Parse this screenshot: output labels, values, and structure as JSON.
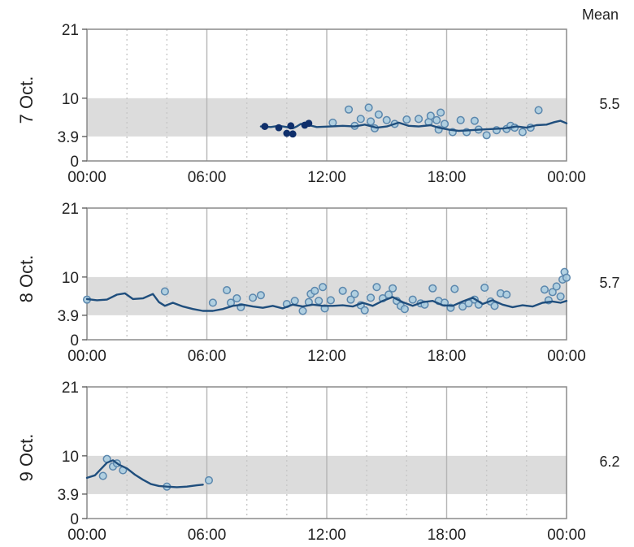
{
  "mean_header": "Mean",
  "colors": {
    "target_band": "#dcdcdc",
    "line": "#1f4e7d",
    "point_fill": "#a8cde0",
    "point_stroke": "#5b87ad",
    "solid_point": "#0f2f6b",
    "grid_major": "#b5b5b5",
    "grid_minor": "#c8c8c8",
    "frame": "#8a8a8a"
  },
  "chart_data": [
    {
      "type": "line",
      "day_label": "7 Oct.",
      "mean": "5.5",
      "x_ticks": [
        "00:00",
        "06:00",
        "12:00",
        "18:00",
        "00:00"
      ],
      "y_ticks": [
        "0",
        "3.9",
        "10",
        "21"
      ],
      "xlim": [
        0,
        24
      ],
      "ylim": [
        0,
        21
      ],
      "target_range": [
        3.9,
        10
      ],
      "grid": true,
      "line": [
        [
          8.7,
          5.5
        ],
        [
          9.2,
          5.4
        ],
        [
          9.6,
          5.6
        ],
        [
          10.0,
          5.4
        ],
        [
          10.3,
          5.2
        ],
        [
          10.5,
          5.5
        ],
        [
          10.7,
          5.9
        ],
        [
          11.0,
          5.8
        ],
        [
          11.5,
          5.4
        ],
        [
          12.2,
          5.5
        ],
        [
          12.8,
          5.6
        ],
        [
          13.4,
          5.5
        ],
        [
          13.9,
          5.8
        ],
        [
          14.5,
          5.3
        ],
        [
          15.0,
          5.5
        ],
        [
          15.6,
          6.1
        ],
        [
          16.1,
          5.6
        ],
        [
          16.6,
          5.5
        ],
        [
          17.2,
          5.7
        ],
        [
          17.6,
          5.3
        ],
        [
          18.1,
          5.0
        ],
        [
          18.6,
          4.8
        ],
        [
          19.2,
          4.9
        ],
        [
          19.7,
          5.0
        ],
        [
          20.3,
          5.1
        ],
        [
          20.9,
          5.2
        ],
        [
          21.5,
          5.5
        ],
        [
          22.0,
          5.3
        ],
        [
          22.5,
          5.7
        ],
        [
          23.0,
          5.8
        ],
        [
          23.4,
          6.2
        ],
        [
          23.7,
          6.4
        ],
        [
          24.0,
          6.0
        ]
      ],
      "points": [
        [
          13.1,
          8.2
        ],
        [
          14.1,
          8.5
        ],
        [
          14.6,
          7.4
        ],
        [
          13.7,
          6.7
        ],
        [
          12.3,
          6.1
        ],
        [
          13.4,
          5.6
        ],
        [
          14.2,
          6.3
        ],
        [
          15.0,
          6.5
        ],
        [
          15.4,
          5.9
        ],
        [
          16.0,
          6.6
        ],
        [
          16.6,
          6.7
        ],
        [
          17.1,
          6.2
        ],
        [
          17.2,
          7.2
        ],
        [
          17.5,
          6.5
        ],
        [
          17.7,
          7.7
        ],
        [
          17.9,
          5.9
        ],
        [
          17.6,
          5.0
        ],
        [
          18.3,
          4.6
        ],
        [
          18.7,
          6.5
        ],
        [
          19.0,
          4.6
        ],
        [
          19.4,
          6.4
        ],
        [
          19.6,
          5.0
        ],
        [
          20.0,
          4.1
        ],
        [
          20.5,
          4.9
        ],
        [
          21.0,
          5.1
        ],
        [
          21.2,
          5.6
        ],
        [
          21.4,
          5.3
        ],
        [
          21.8,
          4.6
        ],
        [
          22.2,
          5.3
        ],
        [
          22.6,
          8.1
        ],
        [
          14.4,
          5.2
        ]
      ],
      "solid_points": [
        [
          8.9,
          5.5
        ],
        [
          9.6,
          5.3
        ],
        [
          10.0,
          4.4
        ],
        [
          10.3,
          4.3
        ],
        [
          10.9,
          5.7
        ],
        [
          11.1,
          6.0
        ],
        [
          10.2,
          5.6
        ]
      ]
    },
    {
      "type": "line",
      "day_label": "8 Oct.",
      "mean": "5.7",
      "x_ticks": [
        "00:00",
        "06:00",
        "12:00",
        "18:00",
        "00:00"
      ],
      "y_ticks": [
        "0",
        "3.9",
        "10",
        "21"
      ],
      "xlim": [
        0,
        24
      ],
      "ylim": [
        0,
        21
      ],
      "target_range": [
        3.9,
        10
      ],
      "grid": true,
      "line": [
        [
          0.0,
          6.5
        ],
        [
          0.5,
          6.3
        ],
        [
          1.0,
          6.4
        ],
        [
          1.5,
          7.2
        ],
        [
          1.9,
          7.4
        ],
        [
          2.3,
          6.5
        ],
        [
          2.8,
          6.6
        ],
        [
          3.3,
          7.3
        ],
        [
          3.6,
          6.0
        ],
        [
          3.9,
          5.4
        ],
        [
          4.3,
          5.9
        ],
        [
          4.8,
          5.3
        ],
        [
          5.3,
          4.9
        ],
        [
          5.8,
          4.6
        ],
        [
          6.3,
          4.6
        ],
        [
          6.8,
          4.9
        ],
        [
          7.3,
          5.4
        ],
        [
          7.8,
          5.6
        ],
        [
          8.3,
          5.3
        ],
        [
          8.8,
          5.1
        ],
        [
          9.3,
          5.4
        ],
        [
          9.8,
          5.0
        ],
        [
          10.3,
          5.6
        ],
        [
          10.8,
          5.3
        ],
        [
          11.3,
          5.6
        ],
        [
          11.8,
          5.4
        ],
        [
          12.3,
          5.4
        ],
        [
          12.8,
          5.5
        ],
        [
          13.3,
          5.3
        ],
        [
          13.8,
          5.9
        ],
        [
          14.3,
          5.4
        ],
        [
          14.8,
          6.2
        ],
        [
          15.3,
          6.8
        ],
        [
          15.8,
          6.0
        ],
        [
          16.3,
          5.4
        ],
        [
          16.8,
          6.0
        ],
        [
          17.3,
          6.2
        ],
        [
          17.8,
          5.5
        ],
        [
          18.3,
          5.4
        ],
        [
          18.8,
          6.1
        ],
        [
          19.3,
          6.7
        ],
        [
          19.8,
          5.7
        ],
        [
          20.3,
          6.3
        ],
        [
          20.8,
          5.6
        ],
        [
          21.3,
          5.2
        ],
        [
          21.8,
          5.5
        ],
        [
          22.3,
          5.3
        ],
        [
          22.8,
          5.9
        ],
        [
          23.3,
          6.1
        ],
        [
          23.7,
          5.9
        ],
        [
          24.0,
          6.2
        ]
      ],
      "points": [
        [
          0.0,
          6.4
        ],
        [
          3.9,
          7.7
        ],
        [
          6.3,
          5.9
        ],
        [
          7.0,
          7.9
        ],
        [
          7.5,
          6.6
        ],
        [
          7.2,
          5.9
        ],
        [
          7.7,
          5.2
        ],
        [
          8.3,
          6.7
        ],
        [
          8.7,
          7.1
        ],
        [
          10.0,
          5.7
        ],
        [
          10.4,
          6.2
        ],
        [
          10.8,
          4.6
        ],
        [
          11.1,
          6.0
        ],
        [
          11.2,
          7.3
        ],
        [
          11.4,
          7.8
        ],
        [
          11.6,
          6.2
        ],
        [
          11.8,
          8.4
        ],
        [
          11.9,
          5.0
        ],
        [
          12.2,
          6.3
        ],
        [
          12.8,
          7.8
        ],
        [
          13.2,
          6.4
        ],
        [
          13.4,
          7.3
        ],
        [
          13.7,
          5.5
        ],
        [
          13.9,
          4.7
        ],
        [
          14.2,
          6.7
        ],
        [
          14.5,
          8.4
        ],
        [
          14.8,
          6.6
        ],
        [
          15.1,
          7.2
        ],
        [
          15.3,
          8.2
        ],
        [
          15.5,
          6.2
        ],
        [
          15.7,
          5.4
        ],
        [
          15.9,
          4.9
        ],
        [
          16.3,
          6.4
        ],
        [
          16.7,
          5.8
        ],
        [
          16.9,
          5.6
        ],
        [
          17.3,
          8.2
        ],
        [
          17.6,
          6.2
        ],
        [
          17.9,
          5.9
        ],
        [
          18.2,
          5.1
        ],
        [
          18.4,
          8.1
        ],
        [
          18.8,
          5.3
        ],
        [
          19.1,
          5.8
        ],
        [
          19.4,
          6.4
        ],
        [
          19.6,
          5.6
        ],
        [
          19.9,
          8.3
        ],
        [
          20.2,
          6.1
        ],
        [
          20.4,
          5.4
        ],
        [
          20.7,
          7.4
        ],
        [
          21.0,
          7.2
        ],
        [
          22.9,
          8.0
        ],
        [
          23.3,
          7.6
        ],
        [
          23.5,
          8.5
        ],
        [
          23.8,
          9.6
        ],
        [
          23.9,
          10.8
        ],
        [
          24.0,
          9.9
        ],
        [
          23.7,
          6.9
        ],
        [
          23.1,
          6.3
        ]
      ],
      "solid_points": []
    },
    {
      "type": "line",
      "day_label": "9 Oct.",
      "mean": "6.2",
      "x_ticks": [
        "00:00",
        "06:00",
        "12:00",
        "18:00",
        "00:00"
      ],
      "y_ticks": [
        "0",
        "3.9",
        "10",
        "21"
      ],
      "xlim": [
        0,
        24
      ],
      "ylim": [
        0,
        21
      ],
      "target_range": [
        3.9,
        10
      ],
      "grid": true,
      "line": [
        [
          0.0,
          6.5
        ],
        [
          0.4,
          6.9
        ],
        [
          0.7,
          7.9
        ],
        [
          1.0,
          8.9
        ],
        [
          1.3,
          9.3
        ],
        [
          1.6,
          8.6
        ],
        [
          2.0,
          8.0
        ],
        [
          2.4,
          7.0
        ],
        [
          2.8,
          6.2
        ],
        [
          3.2,
          5.5
        ],
        [
          3.6,
          5.2
        ],
        [
          4.0,
          5.1
        ],
        [
          4.5,
          5.0
        ],
        [
          5.0,
          5.1
        ],
        [
          5.5,
          5.3
        ],
        [
          5.8,
          5.4
        ]
      ],
      "points": [
        [
          0.8,
          6.8
        ],
        [
          1.0,
          9.5
        ],
        [
          1.3,
          8.3
        ],
        [
          1.5,
          8.8
        ],
        [
          1.8,
          7.7
        ],
        [
          4.0,
          5.1
        ],
        [
          6.1,
          6.1
        ]
      ],
      "solid_points": []
    }
  ]
}
